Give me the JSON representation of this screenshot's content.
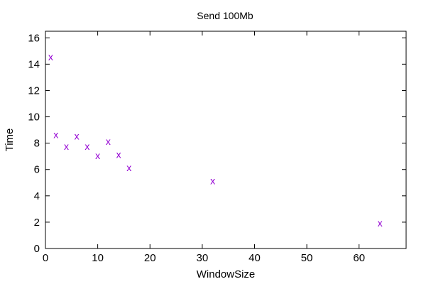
{
  "chart_data": {
    "type": "scatter",
    "title": "Send 100Mb",
    "xlabel": "WindowSize",
    "ylabel": "Time",
    "xlim": [
      0,
      69
    ],
    "ylim": [
      0,
      16.5
    ],
    "xticks": [
      0,
      10,
      20,
      30,
      40,
      50,
      60
    ],
    "yticks": [
      0,
      2,
      4,
      6,
      8,
      10,
      12,
      14,
      16
    ],
    "grid": false,
    "legend": "none",
    "marker": "x",
    "color": "#9400d3",
    "series": [
      {
        "points": [
          {
            "x": 1,
            "y": 14.5
          },
          {
            "x": 2,
            "y": 8.6
          },
          {
            "x": 4,
            "y": 7.7
          },
          {
            "x": 6,
            "y": 8.5
          },
          {
            "x": 8,
            "y": 7.7
          },
          {
            "x": 10,
            "y": 7.0
          },
          {
            "x": 12,
            "y": 8.1
          },
          {
            "x": 14,
            "y": 7.1
          },
          {
            "x": 16,
            "y": 6.1
          },
          {
            "x": 32,
            "y": 5.1
          },
          {
            "x": 64,
            "y": 1.9
          }
        ]
      }
    ]
  }
}
